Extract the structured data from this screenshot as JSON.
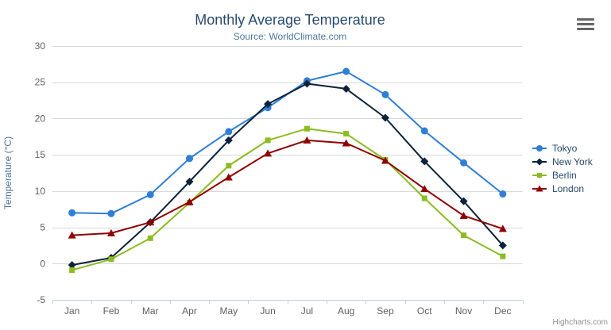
{
  "chart_data": {
    "type": "line",
    "title": "Monthly Average Temperature",
    "subtitle": "Source: WorldClimate.com",
    "xlabel": "",
    "ylabel": "Temperature (°C)",
    "categories": [
      "Jan",
      "Feb",
      "Mar",
      "Apr",
      "May",
      "Jun",
      "Jul",
      "Aug",
      "Sep",
      "Oct",
      "Nov",
      "Dec"
    ],
    "ylim": [
      -5,
      30
    ],
    "ytick_step": 5,
    "grid": true,
    "legend_position": "right",
    "series": [
      {
        "name": "Tokyo",
        "color": "#2f7ed8",
        "marker": "circle",
        "values": [
          7.0,
          6.9,
          9.5,
          14.5,
          18.2,
          21.5,
          25.2,
          26.5,
          23.3,
          18.3,
          13.9,
          9.6
        ]
      },
      {
        "name": "New York",
        "color": "#0d233a",
        "marker": "diamond",
        "values": [
          -0.2,
          0.8,
          5.7,
          11.3,
          17.0,
          22.0,
          24.8,
          24.1,
          20.1,
          14.1,
          8.6,
          2.5
        ]
      },
      {
        "name": "Berlin",
        "color": "#8bbc21",
        "marker": "square",
        "values": [
          -0.9,
          0.6,
          3.5,
          8.4,
          13.5,
          17.0,
          18.6,
          17.9,
          14.3,
          9.0,
          3.9,
          1.0
        ]
      },
      {
        "name": "London",
        "color": "#910000",
        "marker": "triangle",
        "values": [
          3.9,
          4.2,
          5.7,
          8.5,
          11.9,
          15.2,
          17.0,
          16.6,
          14.2,
          10.3,
          6.6,
          4.8
        ]
      }
    ]
  },
  "credits": {
    "label": "Highcharts.com"
  },
  "toolbar": {
    "menu_icon": "hamburger-icon"
  },
  "colors": {
    "title": "#274b6d",
    "subtitle": "#4d759e",
    "axis_title": "#4d759e",
    "tick_label": "#606060",
    "gridline": "#d8d8d8",
    "axis_line": "#c0d0e0",
    "legend_text": "#274b6d",
    "credits_text": "#909090",
    "menu_icon": "#666666"
  }
}
